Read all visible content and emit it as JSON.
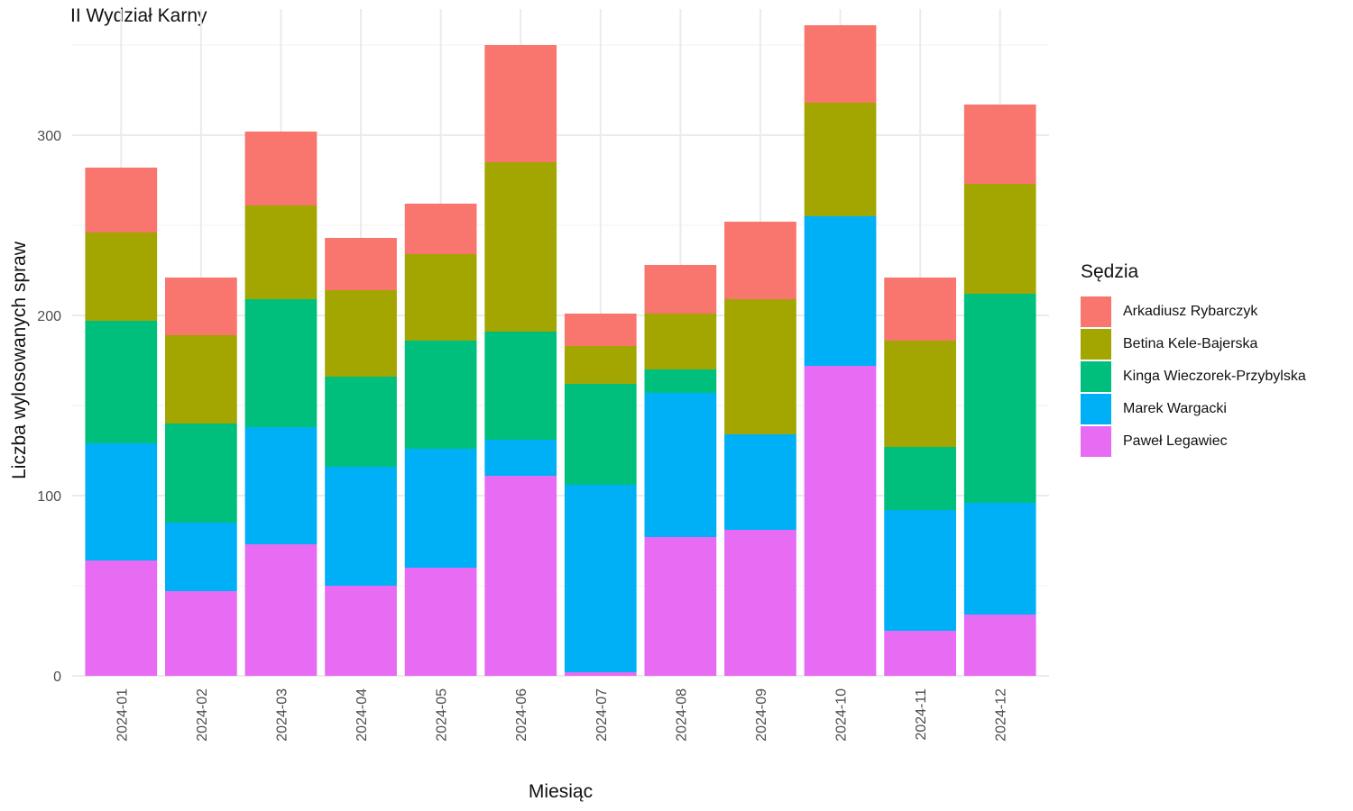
{
  "chart_data": {
    "type": "bar",
    "stacked": true,
    "title": "II Wydział Karny",
    "xlabel": "Miesiąc",
    "ylabel": "Liczba wylosowanych spraw",
    "ylim": [
      0,
      370
    ],
    "yticks": [
      0,
      100,
      200,
      300
    ],
    "grid": true,
    "legend_title": "Sędzia",
    "legend_position": "right",
    "categories": [
      "2024-01",
      "2024-02",
      "2024-03",
      "2024-04",
      "2024-05",
      "2024-06",
      "2024-07",
      "2024-08",
      "2024-09",
      "2024-10",
      "2024-11",
      "2024-12"
    ],
    "series": [
      {
        "name": "Arkadiusz Rybarczyk",
        "color": "#F8766D",
        "values": [
          36,
          32,
          41,
          29,
          28,
          65,
          18,
          27,
          43,
          43,
          35,
          44
        ]
      },
      {
        "name": "Betina Kele-Bajerska",
        "color": "#A3A500",
        "values": [
          49,
          49,
          52,
          48,
          48,
          94,
          21,
          31,
          75,
          63,
          59,
          61
        ]
      },
      {
        "name": "Kinga Wieczorek-Przybylska",
        "color": "#00BF7D",
        "values": [
          68,
          55,
          71,
          50,
          60,
          60,
          56,
          13,
          0,
          0,
          35,
          116
        ]
      },
      {
        "name": "Marek Wargacki",
        "color": "#00B0F6",
        "values": [
          65,
          38,
          65,
          66,
          66,
          20,
          104,
          80,
          53,
          83,
          67,
          62
        ]
      },
      {
        "name": "Paweł Legawiec",
        "color": "#E76BF3",
        "values": [
          64,
          47,
          73,
          50,
          60,
          111,
          2,
          77,
          81,
          172,
          25,
          34
        ]
      }
    ]
  }
}
